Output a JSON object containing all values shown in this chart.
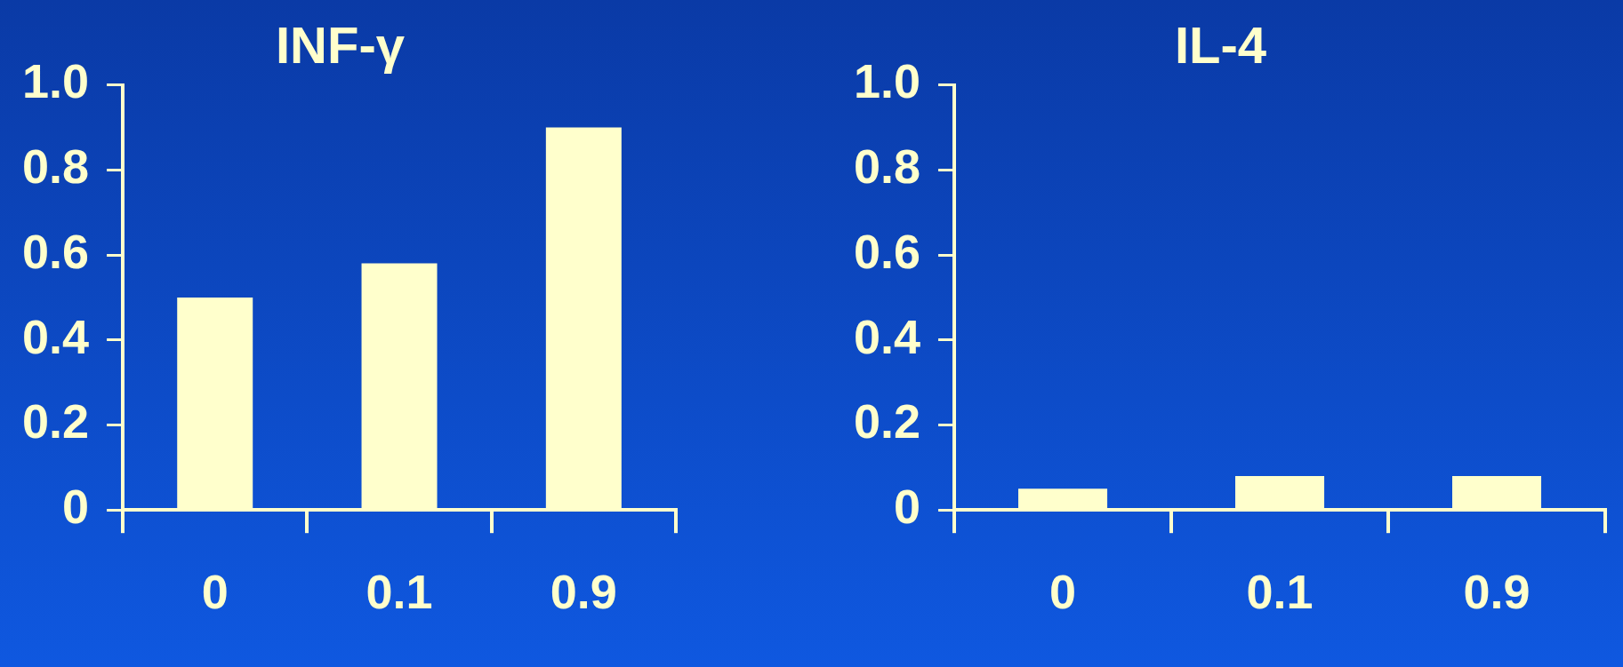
{
  "chart_data": [
    {
      "type": "bar",
      "title": "INF-γ",
      "categories": [
        "0",
        "0.1",
        "0.9"
      ],
      "values": [
        0.5,
        0.58,
        0.9
      ],
      "color": "#ffffcc",
      "ylim": [
        0,
        1.0
      ],
      "yticks": [
        {
          "value": 0,
          "label": "0"
        },
        {
          "value": 0.2,
          "label": "0.2"
        },
        {
          "value": 0.4,
          "label": "0.4"
        },
        {
          "value": 0.6,
          "label": "0.6"
        },
        {
          "value": 0.8,
          "label": "0.8"
        },
        {
          "value": 1.0,
          "label": "1.0"
        }
      ]
    },
    {
      "type": "bar",
      "title": "IL-4",
      "categories": [
        "0",
        "0.1",
        "0.9"
      ],
      "values": [
        0.05,
        0.08,
        0.08
      ],
      "color": "#ffffcc",
      "ylim": [
        0,
        1.0
      ],
      "yticks": [
        {
          "value": 0,
          "label": "0"
        },
        {
          "value": 0.2,
          "label": "0.2"
        },
        {
          "value": 0.4,
          "label": "0.4"
        },
        {
          "value": 0.6,
          "label": "0.6"
        },
        {
          "value": 0.8,
          "label": "0.8"
        },
        {
          "value": 1.0,
          "label": "1.0"
        }
      ]
    }
  ]
}
